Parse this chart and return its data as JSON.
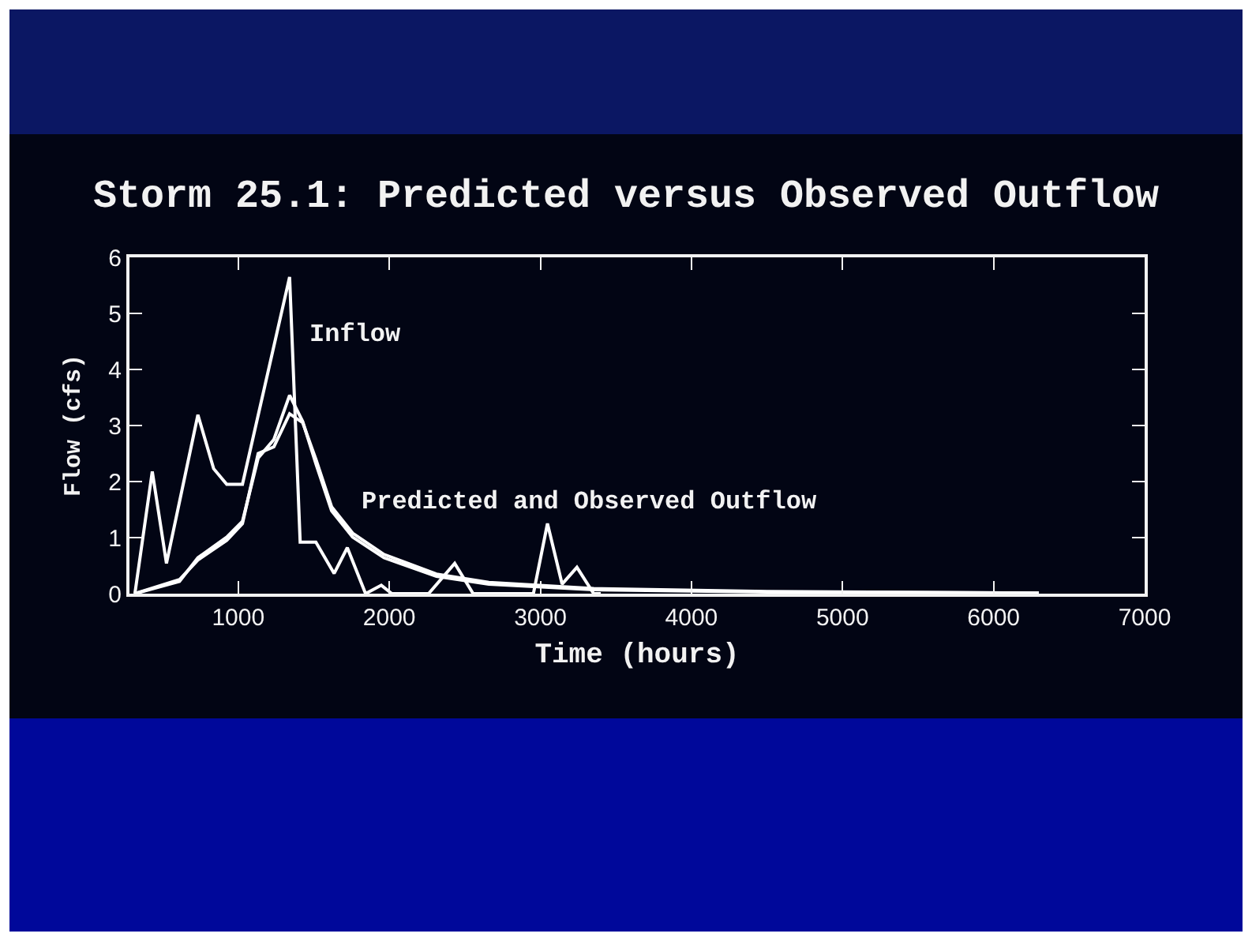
{
  "chart_data": {
    "type": "line",
    "title": "Storm 25.1: Predicted versus Observed Outflow",
    "xlabel": "Time (hours)",
    "ylabel": "Flow (cfs)",
    "series": [
      {
        "color": "#ffffff",
        "x": [
          316,
          431,
          525,
          733,
          837,
          924,
          1028,
          1340,
          1410,
          1514,
          1635,
          1722,
          1843,
          1947,
          2017,
          2260,
          2433,
          2555,
          2954,
          3047,
          3144,
          3242,
          3353,
          3400
        ],
        "values": [
          0,
          2.18,
          0.54,
          3.19,
          2.23,
          1.95,
          1.95,
          5.65,
          0.92,
          0.92,
          0.36,
          0.82,
          0,
          0.15,
          0,
          0,
          0.54,
          0,
          0,
          1.25,
          0.17,
          0.47,
          0,
          0
        ]
      },
      {
        "color": "#ffffff",
        "x": [
          316,
          611,
          733,
          924,
          1028,
          1132,
          1236,
          1340,
          1427,
          1514,
          1618,
          1757,
          1965,
          2312,
          2659,
          3353,
          4500,
          6300
        ],
        "values": [
          0,
          0.22,
          0.64,
          1.01,
          1.29,
          2.42,
          2.75,
          3.54,
          3.07,
          2.32,
          1.48,
          1.01,
          0.64,
          0.31,
          0.17,
          0.07,
          0.03,
          0.01
        ]
      },
      {
        "color": "#ffffff",
        "x": [
          316,
          611,
          733,
          924,
          1028,
          1132,
          1236,
          1340,
          1427,
          1514,
          1618,
          1757,
          1965,
          2312,
          2659,
          3353,
          4500,
          6300
        ],
        "values": [
          0,
          0.25,
          0.6,
          0.95,
          1.25,
          2.5,
          2.62,
          3.21,
          3.05,
          2.4,
          1.55,
          1.08,
          0.7,
          0.35,
          0.2,
          0.09,
          0.04,
          0.01
        ]
      }
    ],
    "annotations": [
      "Inflow",
      "Predicted and Observed Outflow"
    ],
    "xlim": [
      280,
      7000
    ],
    "xticks": [
      1000,
      2000,
      3000,
      4000,
      5000,
      6000,
      7000
    ],
    "ylim": [
      0,
      6
    ],
    "yticks": [
      0,
      1,
      2,
      3,
      4,
      5,
      6
    ],
    "grid": false,
    "marker": "none",
    "line_style": "solid"
  }
}
